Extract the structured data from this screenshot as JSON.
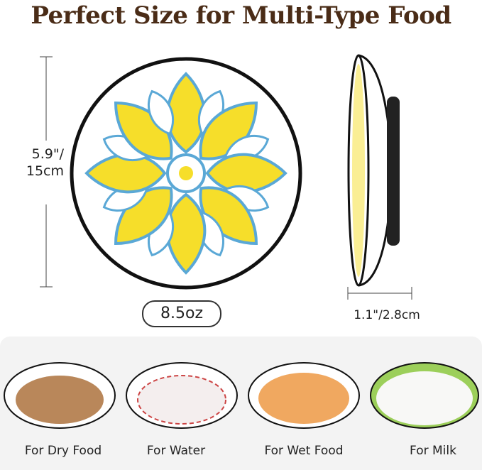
{
  "title": "Perfect Size for Multi-Type Food",
  "dimensions": {
    "diameter_line1": "5.9\"/",
    "diameter_line2": "15cm",
    "height": "1.1\"/2.8cm",
    "capacity": "8.5oz"
  },
  "uses": [
    {
      "label": "For Dry Food"
    },
    {
      "label": "For Water"
    },
    {
      "label": "For Wet Food"
    },
    {
      "label": "For Milk"
    }
  ],
  "colors": {
    "title": "#4a2c17",
    "pattern_blue": "#5aa8d6",
    "pattern_yellow": "#f2d51c",
    "rim": "#111111"
  }
}
